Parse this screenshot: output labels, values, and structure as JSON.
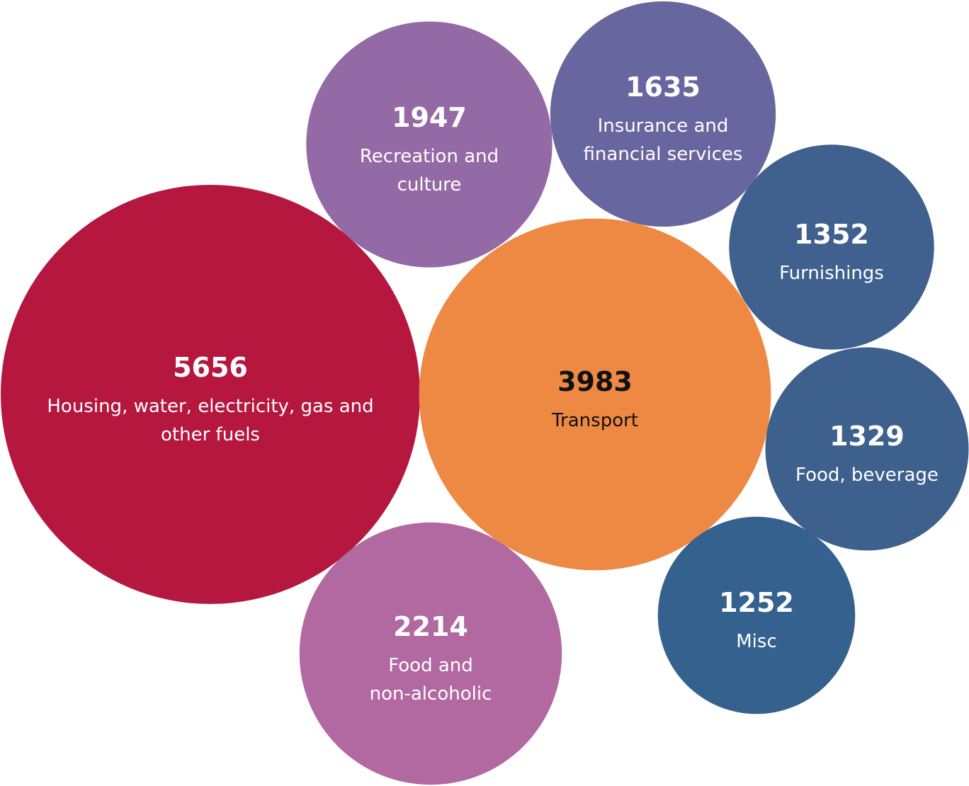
{
  "chart_data": {
    "type": "bubble",
    "title": "",
    "bubbles": [
      {
        "value": 5656,
        "label_lines": [
          "Housing, water, electricity, gas and",
          "other fuels"
        ],
        "color": "#B5173E",
        "text_color": "#FFFFFF"
      },
      {
        "value": 3983,
        "label_lines": [
          "Transport"
        ],
        "color": "#EE8944",
        "text_color": "#111111"
      },
      {
        "value": 2214,
        "label_lines": [
          "Food and",
          "non-alcoholic"
        ],
        "color": "#B268A0",
        "text_color": "#FFFFFF"
      },
      {
        "value": 1947,
        "label_lines": [
          "Recreation and",
          "culture"
        ],
        "color": "#936AA5",
        "text_color": "#FFFFFF"
      },
      {
        "value": 1635,
        "label_lines": [
          "Insurance and",
          "financial services"
        ],
        "color": "#68669E",
        "text_color": "#FFFFFF"
      },
      {
        "value": 1352,
        "label_lines": [
          "Furnishings"
        ],
        "color": "#40608E",
        "text_color": "#FFFFFF"
      },
      {
        "value": 1329,
        "label_lines": [
          "Food, beverage"
        ],
        "color": "#3D608D",
        "text_color": "#FFFFFF"
      },
      {
        "value": 1252,
        "label_lines": [
          "Misc"
        ],
        "color": "#35618E",
        "text_color": "#FFFFFF"
      }
    ]
  }
}
